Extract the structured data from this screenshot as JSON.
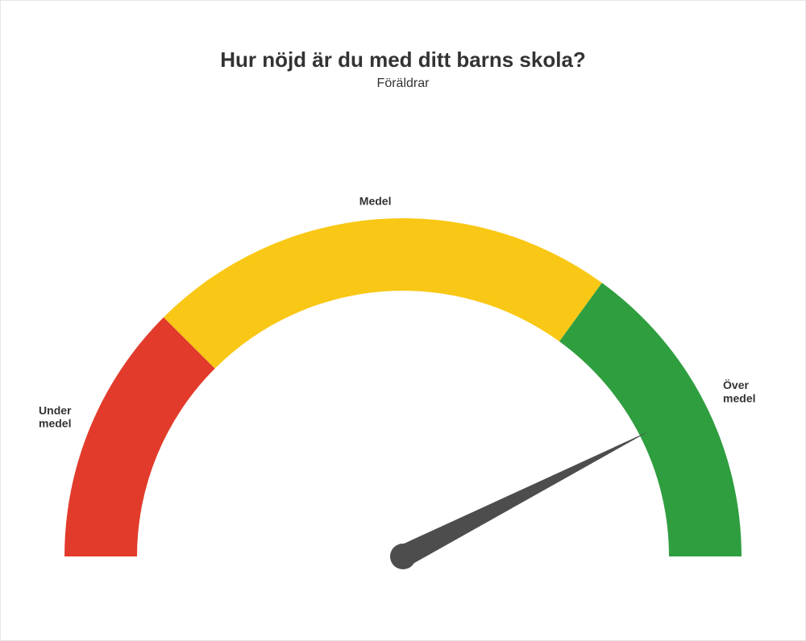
{
  "title": "Hur nöjd är du med ditt barns skola?",
  "subtitle": "Föräldrar",
  "gauge": {
    "type": "gauge",
    "min": 0,
    "max": 100,
    "value": 85,
    "needle_color": "#4d4d4d",
    "background_color": "#ffffff",
    "outer_radius": 420,
    "inner_radius": 330,
    "segments": [
      {
        "from": 0,
        "to": 25,
        "color": "#e23b2b",
        "label_lines": [
          "Under",
          "medel"
        ]
      },
      {
        "from": 25,
        "to": 70,
        "color": "#f9c816",
        "label_lines": [
          "Medel"
        ]
      },
      {
        "from": 70,
        "to": 100,
        "color": "#2f9e3f",
        "label_lines": [
          "Över",
          "medel"
        ]
      }
    ],
    "label_fontsize": 14,
    "label_fontweight": "700",
    "title_fontsize": 26,
    "subtitle_fontsize": 16,
    "text_color": "#333333"
  }
}
